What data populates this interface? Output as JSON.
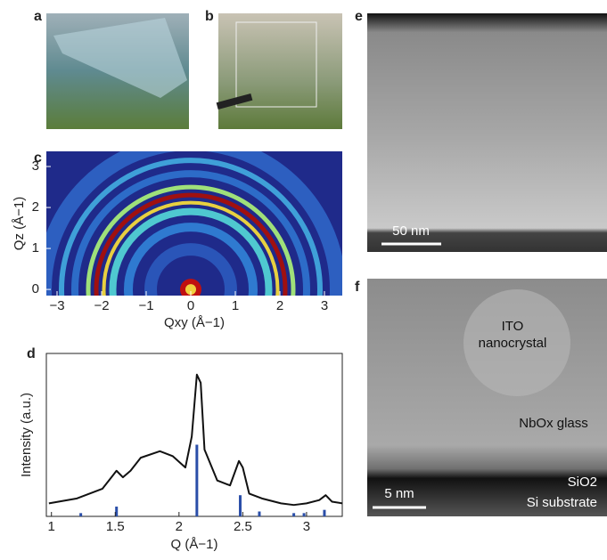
{
  "panels": {
    "a": "a",
    "b": "b",
    "c": "c",
    "d": "d",
    "e": "e",
    "f": "f"
  },
  "micrographs": {
    "e_scale": "50 nm",
    "f_scale": "5 nm",
    "ito_1": "ITO",
    "ito_2": "nanocrystal",
    "glass": "NbOx glass",
    "sio2": "SiO2",
    "si": "Si substrate"
  },
  "chart_data": [
    {
      "type": "image",
      "xlabel": "Qxy (Å−1)",
      "ylabel": "Qz (Å−1)",
      "xlim": [
        -3.24,
        3.4
      ],
      "ylim": [
        -0.15,
        3.37
      ],
      "xticks": [
        {
          "value": -3,
          "label": "−3"
        },
        {
          "value": -2,
          "label": "−2"
        },
        {
          "value": -1,
          "label": "−1"
        },
        0,
        1,
        2,
        3
      ],
      "yticks": [
        0,
        1,
        2,
        3
      ]
    },
    {
      "type": "line",
      "xlabel": "Q (Å−1)",
      "ylabel": "Intensity (a.u.)",
      "xlim": [
        0.96,
        3.28
      ],
      "ylim": [
        0,
        100
      ],
      "xticks": [
        1,
        1.5,
        2,
        2.5,
        3
      ],
      "color": "#111111",
      "x": [
        0.98,
        1.2,
        1.4,
        1.47,
        1.51,
        1.56,
        1.62,
        1.7,
        1.85,
        1.95,
        2.05,
        2.1,
        2.14,
        2.17,
        2.2,
        2.3,
        2.4,
        2.47,
        2.5,
        2.55,
        2.65,
        2.8,
        2.9,
        3.0,
        3.1,
        3.15,
        3.2,
        3.28
      ],
      "values": [
        8,
        11,
        17,
        24,
        28,
        24,
        28,
        36,
        40,
        37,
        30,
        49,
        87,
        82,
        41,
        22,
        19,
        34,
        30,
        14,
        11,
        8,
        7,
        8,
        10,
        13,
        9,
        8
      ],
      "stems": {
        "color": "#2a4ea8",
        "x": [
          1.23,
          1.51,
          2.14,
          2.48,
          2.63,
          2.9,
          2.98,
          3.14
        ],
        "values": [
          2,
          6,
          44,
          13,
          3,
          2,
          2,
          4
        ]
      }
    }
  ]
}
